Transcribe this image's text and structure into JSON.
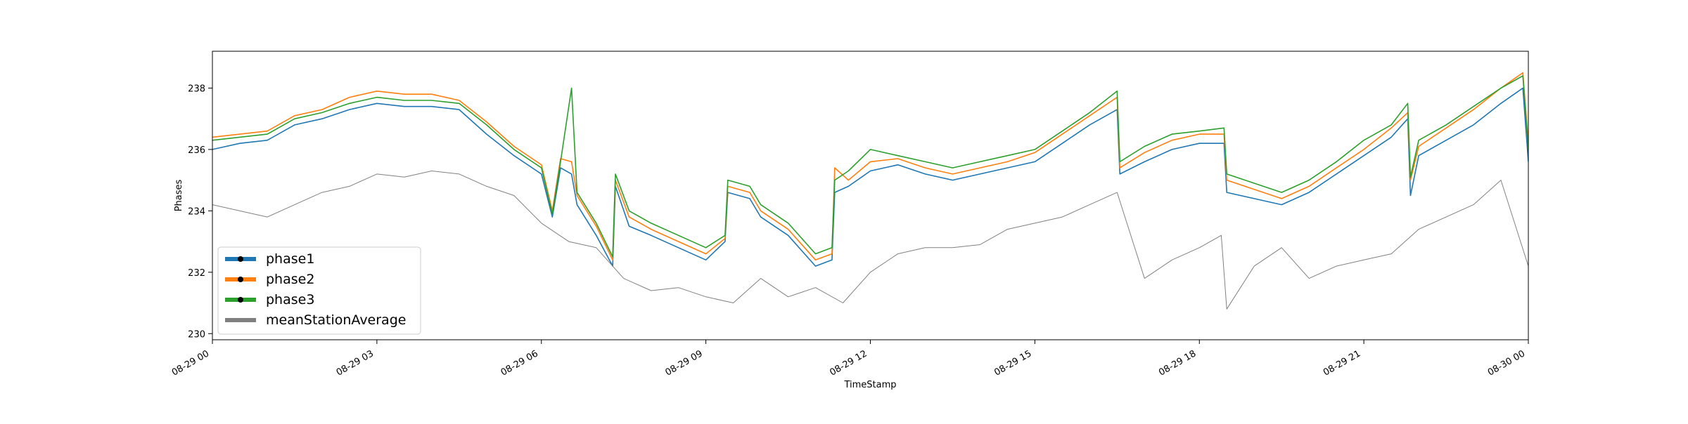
{
  "chart_data": {
    "type": "line",
    "xlabel": "TimeStamp",
    "ylabel": "Phases",
    "x_unit": "hours from 08-29 00",
    "xlim": [
      0,
      24
    ],
    "ylim": [
      229.8,
      239.2
    ],
    "x_ticks": [
      {
        "value": 0,
        "label": "08-29 00"
      },
      {
        "value": 3,
        "label": "08-29 03"
      },
      {
        "value": 6,
        "label": "08-29 06"
      },
      {
        "value": 9,
        "label": "08-29 09"
      },
      {
        "value": 12,
        "label": "08-29 12"
      },
      {
        "value": 15,
        "label": "08-29 15"
      },
      {
        "value": 18,
        "label": "08-29 18"
      },
      {
        "value": 21,
        "label": "08-29 21"
      },
      {
        "value": 24,
        "label": "08-30 00"
      }
    ],
    "y_ticks": [
      230,
      232,
      234,
      236,
      238
    ],
    "grid": false,
    "legend_position": "lower-left",
    "series": [
      {
        "name": "phase1",
        "color": "#1f77b4",
        "markers": true,
        "points": [
          [
            0,
            236.0
          ],
          [
            0.5,
            236.2
          ],
          [
            1,
            236.3
          ],
          [
            1.5,
            236.8
          ],
          [
            2,
            237.0
          ],
          [
            2.5,
            237.3
          ],
          [
            3,
            237.5
          ],
          [
            3.5,
            237.4
          ],
          [
            4,
            237.4
          ],
          [
            4.5,
            237.3
          ],
          [
            5,
            236.5
          ],
          [
            5.5,
            235.8
          ],
          [
            6,
            235.2
          ],
          [
            6.2,
            233.8
          ],
          [
            6.35,
            235.4
          ],
          [
            6.55,
            235.2
          ],
          [
            6.65,
            234.2
          ],
          [
            7,
            233.2
          ],
          [
            7.3,
            232.2
          ],
          [
            7.35,
            234.8
          ],
          [
            7.6,
            233.5
          ],
          [
            8,
            233.2
          ],
          [
            8.5,
            232.8
          ],
          [
            9,
            232.4
          ],
          [
            9.35,
            233.0
          ],
          [
            9.4,
            234.6
          ],
          [
            9.8,
            234.4
          ],
          [
            10,
            233.8
          ],
          [
            10.5,
            233.2
          ],
          [
            11,
            232.2
          ],
          [
            11.3,
            232.4
          ],
          [
            11.35,
            234.6
          ],
          [
            11.6,
            234.8
          ],
          [
            12,
            235.3
          ],
          [
            12.5,
            235.5
          ],
          [
            13,
            235.2
          ],
          [
            13.5,
            235.0
          ],
          [
            14,
            235.2
          ],
          [
            14.5,
            235.4
          ],
          [
            15,
            235.6
          ],
          [
            15.5,
            236.2
          ],
          [
            16,
            236.8
          ],
          [
            16.5,
            237.3
          ],
          [
            16.55,
            235.2
          ],
          [
            17,
            235.6
          ],
          [
            17.5,
            236.0
          ],
          [
            18,
            236.2
          ],
          [
            18.45,
            236.2
          ],
          [
            18.5,
            234.6
          ],
          [
            19,
            234.4
          ],
          [
            19.5,
            234.2
          ],
          [
            20,
            234.6
          ],
          [
            20.5,
            235.2
          ],
          [
            21,
            235.8
          ],
          [
            21.5,
            236.4
          ],
          [
            21.8,
            237.0
          ],
          [
            21.85,
            234.5
          ],
          [
            22,
            235.8
          ],
          [
            22.5,
            236.3
          ],
          [
            23,
            236.8
          ],
          [
            23.5,
            237.5
          ],
          [
            23.9,
            238.0
          ],
          [
            24,
            235.6
          ]
        ]
      },
      {
        "name": "phase2",
        "color": "#ff7f0e",
        "markers": true,
        "points": [
          [
            0,
            236.4
          ],
          [
            0.5,
            236.5
          ],
          [
            1,
            236.6
          ],
          [
            1.5,
            237.1
          ],
          [
            2,
            237.3
          ],
          [
            2.5,
            237.7
          ],
          [
            3,
            237.9
          ],
          [
            3.5,
            237.8
          ],
          [
            4,
            237.8
          ],
          [
            4.5,
            237.6
          ],
          [
            5,
            236.9
          ],
          [
            5.5,
            236.1
          ],
          [
            6,
            235.5
          ],
          [
            6.2,
            234.0
          ],
          [
            6.35,
            235.7
          ],
          [
            6.55,
            235.6
          ],
          [
            6.65,
            234.5
          ],
          [
            7,
            233.5
          ],
          [
            7.3,
            232.4
          ],
          [
            7.35,
            235.0
          ],
          [
            7.6,
            233.8
          ],
          [
            8,
            233.4
          ],
          [
            8.5,
            233.0
          ],
          [
            9,
            232.6
          ],
          [
            9.35,
            233.1
          ],
          [
            9.4,
            234.8
          ],
          [
            9.8,
            234.6
          ],
          [
            10,
            234.0
          ],
          [
            10.5,
            233.4
          ],
          [
            11,
            232.4
          ],
          [
            11.3,
            232.6
          ],
          [
            11.35,
            235.4
          ],
          [
            11.6,
            235.0
          ],
          [
            12,
            235.6
          ],
          [
            12.5,
            235.7
          ],
          [
            13,
            235.4
          ],
          [
            13.5,
            235.2
          ],
          [
            14,
            235.4
          ],
          [
            14.5,
            235.6
          ],
          [
            15,
            235.9
          ],
          [
            15.5,
            236.5
          ],
          [
            16,
            237.1
          ],
          [
            16.5,
            237.7
          ],
          [
            16.55,
            235.4
          ],
          [
            17,
            235.9
          ],
          [
            17.5,
            236.3
          ],
          [
            18,
            236.5
          ],
          [
            18.45,
            236.5
          ],
          [
            18.5,
            235.0
          ],
          [
            19,
            234.7
          ],
          [
            19.5,
            234.4
          ],
          [
            20,
            234.8
          ],
          [
            20.5,
            235.4
          ],
          [
            21,
            236.0
          ],
          [
            21.5,
            236.7
          ],
          [
            21.8,
            237.2
          ],
          [
            21.85,
            235.0
          ],
          [
            22,
            236.1
          ],
          [
            22.5,
            236.7
          ],
          [
            23,
            237.3
          ],
          [
            23.5,
            238.0
          ],
          [
            23.9,
            238.5
          ],
          [
            24,
            236.2
          ]
        ]
      },
      {
        "name": "phase3",
        "color": "#2ca02c",
        "markers": true,
        "points": [
          [
            0,
            236.3
          ],
          [
            0.5,
            236.4
          ],
          [
            1,
            236.5
          ],
          [
            1.5,
            237.0
          ],
          [
            2,
            237.2
          ],
          [
            2.5,
            237.5
          ],
          [
            3,
            237.7
          ],
          [
            3.5,
            237.6
          ],
          [
            4,
            237.6
          ],
          [
            4.5,
            237.5
          ],
          [
            5,
            236.8
          ],
          [
            5.5,
            236.0
          ],
          [
            6,
            235.4
          ],
          [
            6.2,
            233.9
          ],
          [
            6.35,
            235.6
          ],
          [
            6.55,
            238.0
          ],
          [
            6.65,
            234.6
          ],
          [
            7,
            233.6
          ],
          [
            7.3,
            232.5
          ],
          [
            7.35,
            235.2
          ],
          [
            7.6,
            234.0
          ],
          [
            8,
            233.6
          ],
          [
            8.5,
            233.2
          ],
          [
            9,
            232.8
          ],
          [
            9.35,
            233.2
          ],
          [
            9.4,
            235.0
          ],
          [
            9.8,
            234.8
          ],
          [
            10,
            234.2
          ],
          [
            10.5,
            233.6
          ],
          [
            11,
            232.6
          ],
          [
            11.3,
            232.8
          ],
          [
            11.35,
            235.0
          ],
          [
            11.6,
            235.3
          ],
          [
            12,
            236.0
          ],
          [
            12.5,
            235.8
          ],
          [
            13,
            235.6
          ],
          [
            13.5,
            235.4
          ],
          [
            14,
            235.6
          ],
          [
            14.5,
            235.8
          ],
          [
            15,
            236.0
          ],
          [
            15.5,
            236.6
          ],
          [
            16,
            237.2
          ],
          [
            16.5,
            237.9
          ],
          [
            16.55,
            235.6
          ],
          [
            17,
            236.1
          ],
          [
            17.5,
            236.5
          ],
          [
            18,
            236.6
          ],
          [
            18.45,
            236.7
          ],
          [
            18.5,
            235.2
          ],
          [
            19,
            234.9
          ],
          [
            19.5,
            234.6
          ],
          [
            20,
            235.0
          ],
          [
            20.5,
            235.6
          ],
          [
            21,
            236.3
          ],
          [
            21.5,
            236.8
          ],
          [
            21.8,
            237.5
          ],
          [
            21.85,
            235.1
          ],
          [
            22,
            236.3
          ],
          [
            22.5,
            236.8
          ],
          [
            23,
            237.4
          ],
          [
            23.5,
            238.0
          ],
          [
            23.9,
            238.4
          ],
          [
            24,
            236.0
          ]
        ]
      },
      {
        "name": "meanStationAverage",
        "color": "#808080",
        "markers": false,
        "points": [
          [
            0,
            234.2
          ],
          [
            0.5,
            234.0
          ],
          [
            1,
            233.8
          ],
          [
            1.5,
            234.2
          ],
          [
            2,
            234.6
          ],
          [
            2.5,
            234.8
          ],
          [
            3,
            235.2
          ],
          [
            3.5,
            235.1
          ],
          [
            4,
            235.3
          ],
          [
            4.5,
            235.2
          ],
          [
            5,
            234.8
          ],
          [
            5.5,
            234.5
          ],
          [
            6,
            233.6
          ],
          [
            6.5,
            233.0
          ],
          [
            7,
            232.8
          ],
          [
            7.5,
            231.8
          ],
          [
            8,
            231.4
          ],
          [
            8.5,
            231.5
          ],
          [
            9,
            231.2
          ],
          [
            9.5,
            231.0
          ],
          [
            10,
            231.8
          ],
          [
            10.5,
            231.2
          ],
          [
            11,
            231.5
          ],
          [
            11.5,
            231.0
          ],
          [
            12,
            232.0
          ],
          [
            12.5,
            232.6
          ],
          [
            13,
            232.8
          ],
          [
            13.5,
            232.8
          ],
          [
            14,
            232.9
          ],
          [
            14.5,
            233.4
          ],
          [
            15,
            233.6
          ],
          [
            15.5,
            233.8
          ],
          [
            16,
            234.2
          ],
          [
            16.5,
            234.6
          ],
          [
            17,
            231.8
          ],
          [
            17.5,
            232.4
          ],
          [
            18,
            232.8
          ],
          [
            18.4,
            233.2
          ],
          [
            18.5,
            230.8
          ],
          [
            19,
            232.2
          ],
          [
            19.5,
            232.8
          ],
          [
            20,
            231.8
          ],
          [
            20.5,
            232.2
          ],
          [
            21,
            232.4
          ],
          [
            21.5,
            232.6
          ],
          [
            22,
            233.4
          ],
          [
            22.5,
            233.8
          ],
          [
            23,
            234.2
          ],
          [
            23.5,
            235.0
          ],
          [
            24,
            232.2
          ]
        ]
      }
    ]
  }
}
